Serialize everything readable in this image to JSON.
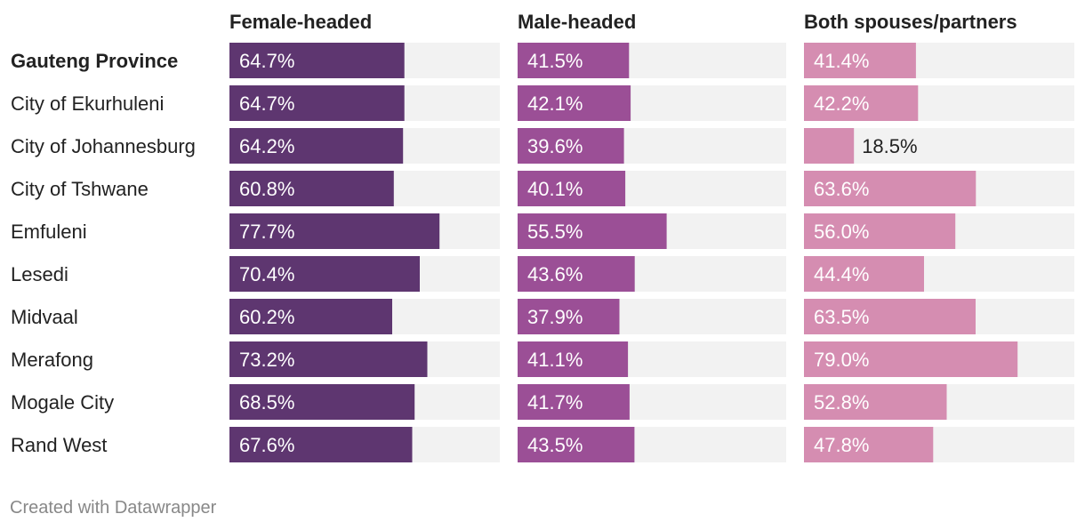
{
  "chart_data": {
    "type": "bar",
    "orientation": "horizontal",
    "value_suffix": "%",
    "xlim": [
      0,
      100
    ],
    "categories": [
      "Gauteng Province",
      "City of Ekurhuleni",
      "City of Johannesburg",
      "City of Tshwane",
      "Emfuleni",
      "Lesedi",
      "Midvaal",
      "Merafong",
      "Mogale City",
      "Rand West"
    ],
    "bold_categories": [
      "Gauteng Province"
    ],
    "series": [
      {
        "name": "Female-headed",
        "color": "#5e3670",
        "values": [
          64.7,
          64.7,
          64.2,
          60.8,
          77.7,
          70.4,
          60.2,
          73.2,
          68.5,
          67.6
        ]
      },
      {
        "name": "Male-headed",
        "color": "#9b4f96",
        "values": [
          41.5,
          42.1,
          39.6,
          40.1,
          55.5,
          43.6,
          37.9,
          41.1,
          41.7,
          43.5
        ]
      },
      {
        "name": "Both spouses/partners",
        "color": "#d58db1",
        "values": [
          41.4,
          42.2,
          18.5,
          63.6,
          56.0,
          44.4,
          63.5,
          79.0,
          52.8,
          47.8
        ]
      }
    ],
    "background_track_color": "#f2f2f2"
  },
  "footer": {
    "credit": "Created with Datawrapper"
  }
}
